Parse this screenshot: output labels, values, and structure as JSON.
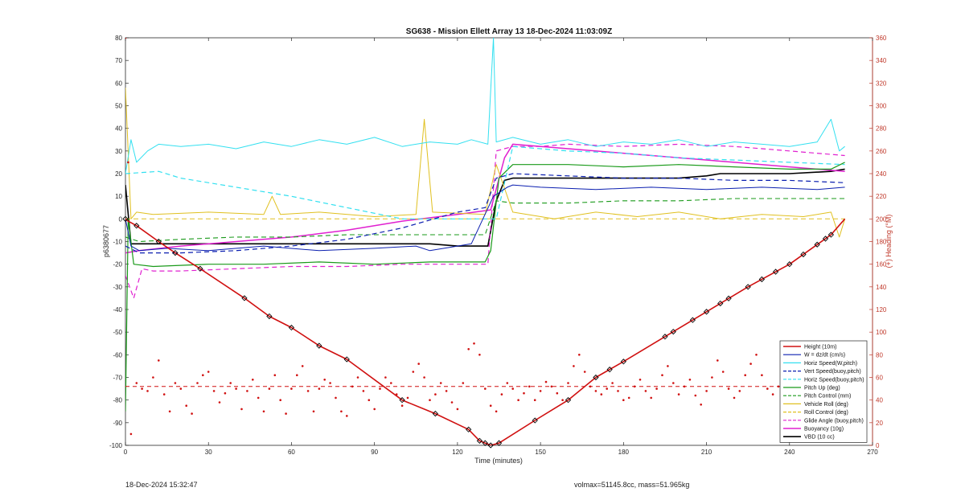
{
  "footer": {
    "left": "18-Dec-2024 15:32:47",
    "right": "volmax=51145.8cc, mass=51.965kg"
  },
  "colors": {
    "height": "#d01010",
    "w": "#0b1fb0",
    "horz_speed": "#33e0f0",
    "pitch": "#1a9a1a",
    "roll": "#e0c020",
    "glide": "#e020d0",
    "buoyancy": "#e020d0",
    "vbd": "#000000",
    "right_axis": "#c0392b"
  },
  "chart_data": {
    "type": "line",
    "title": "SG638 - Mission Ellett Array 13 18-Dec-2024 11:03:09Z",
    "xlabel": "Time (minutes)",
    "ylabel": "p6380677",
    "ylabel_right": "(+) Heading (°M)",
    "xlim": [
      0,
      270
    ],
    "ylim": [
      -100,
      80
    ],
    "ylim_right": [
      0,
      360
    ],
    "xticks": [
      0,
      30,
      60,
      90,
      120,
      150,
      180,
      210,
      240,
      270
    ],
    "yticks": [
      -100,
      -90,
      -80,
      -70,
      -60,
      -50,
      -40,
      -30,
      -20,
      -10,
      0,
      10,
      20,
      30,
      40,
      50,
      60,
      70,
      80
    ],
    "yticks_right": [
      0,
      20,
      40,
      60,
      80,
      100,
      120,
      140,
      160,
      180,
      200,
      220,
      240,
      260,
      280,
      300,
      320,
      340,
      360
    ],
    "grid": false,
    "legend_position": "bottom-right",
    "series": [
      {
        "name": "Height (10m)",
        "key": "height",
        "style": "solid",
        "width": 1.6,
        "x": [
          0,
          1,
          4,
          12,
          18,
          27,
          43,
          52,
          60,
          70,
          80,
          100,
          112,
          124,
          128,
          130,
          132,
          135,
          148,
          160,
          170,
          180,
          195,
          210,
          225,
          240,
          255,
          260
        ],
        "y": [
          0,
          -1,
          -3,
          -10,
          -15,
          -22,
          -35,
          -43,
          -48,
          -56,
          -62,
          -80,
          -86,
          -93,
          -98,
          -99,
          -100,
          -99,
          -89,
          -80,
          -70,
          -63,
          -52,
          -41,
          -30,
          -20,
          -7,
          0
        ]
      },
      {
        "name": "W = dz/dt (cm/s)",
        "key": "w",
        "style": "solid",
        "width": 1,
        "x": [
          0,
          2,
          5,
          15,
          30,
          50,
          70,
          90,
          105,
          110,
          120,
          125,
          133,
          138,
          140,
          150,
          170,
          190,
          210,
          230,
          250,
          260
        ],
        "y": [
          0,
          -12,
          -14,
          -13,
          -14,
          -12,
          -14,
          -13,
          -12,
          -14,
          -12,
          -11,
          10,
          14,
          15,
          14,
          13,
          14,
          13,
          14,
          13,
          14
        ]
      },
      {
        "name": "Horiz Speed(W,pitch)",
        "key": "horz_speed",
        "style": "solid",
        "width": 1,
        "x": [
          0,
          2,
          4,
          8,
          12,
          20,
          30,
          40,
          50,
          60,
          70,
          80,
          90,
          100,
          110,
          120,
          125,
          131,
          133,
          134,
          140,
          150,
          160,
          170,
          180,
          190,
          200,
          210,
          220,
          230,
          240,
          250,
          255,
          258,
          260
        ],
        "y": [
          20,
          35,
          25,
          30,
          33,
          32,
          33,
          31,
          34,
          32,
          35,
          33,
          36,
          32,
          34,
          33,
          35,
          33,
          80,
          34,
          36,
          33,
          35,
          32,
          34,
          33,
          35,
          32,
          34,
          33,
          32,
          34,
          44,
          30,
          32
        ]
      },
      {
        "name": "Vert Speed(buoy,pitch)",
        "key": "w",
        "style": "dash",
        "width": 1.2,
        "x": [
          0,
          5,
          20,
          40,
          60,
          80,
          100,
          120,
          130,
          134,
          140,
          160,
          180,
          200,
          220,
          240,
          260
        ],
        "y": [
          -12,
          -15,
          -15,
          -14,
          -12,
          -9,
          -4,
          3,
          5,
          18,
          20,
          19,
          18,
          18,
          17,
          17,
          16
        ]
      },
      {
        "name": "Horiz Speed(buoy,pitch)",
        "key": "horz_speed",
        "style": "dash",
        "width": 1.2,
        "x": [
          0,
          12,
          20,
          40,
          60,
          80,
          100,
          120,
          134,
          140,
          160,
          180,
          200,
          220,
          240,
          260
        ],
        "y": [
          20,
          21,
          18,
          14,
          10,
          5,
          0,
          0,
          0,
          32,
          30,
          29,
          27,
          26,
          25,
          24
        ]
      },
      {
        "name": "Pitch Up (deg)",
        "key": "pitch",
        "style": "solid",
        "width": 1.2,
        "x": [
          0,
          1,
          3,
          10,
          30,
          50,
          70,
          90,
          110,
          130,
          132,
          135,
          140,
          160,
          180,
          200,
          220,
          240,
          255,
          260
        ],
        "y": [
          -85,
          0,
          -20,
          -21,
          -20,
          -20,
          -19,
          -20,
          -19,
          -19,
          -14,
          18,
          24,
          24,
          23,
          24,
          23,
          22,
          22,
          25
        ]
      },
      {
        "name": "Pitch Control (mm)",
        "key": "pitch",
        "style": "dash",
        "width": 1.1,
        "x": [
          0,
          5,
          20,
          40,
          60,
          80,
          100,
          120,
          130,
          134,
          140,
          160,
          180,
          200,
          220,
          240,
          260
        ],
        "y": [
          -8,
          -10,
          -9,
          -8,
          -8,
          -7,
          -7,
          -7,
          -7,
          8,
          7,
          7,
          8,
          8,
          9,
          9,
          9
        ]
      },
      {
        "name": "Vehicle Roll (deg)",
        "key": "roll",
        "style": "solid",
        "width": 1,
        "x": [
          0,
          2,
          4,
          10,
          30,
          50,
          53,
          56,
          70,
          90,
          105,
          108,
          111,
          130,
          134,
          140,
          155,
          170,
          185,
          200,
          215,
          230,
          245,
          255,
          258,
          260
        ],
        "y": [
          58,
          0,
          3,
          2,
          3,
          2,
          10,
          2,
          3,
          1,
          2,
          44,
          3,
          2,
          24,
          3,
          0,
          3,
          1,
          3,
          0,
          2,
          1,
          3,
          -8,
          0
        ]
      },
      {
        "name": "Roll Control (deg)",
        "key": "roll",
        "style": "dash",
        "width": 1,
        "x": [
          0,
          5,
          20,
          40,
          60,
          80,
          100,
          120,
          131,
          134,
          140,
          160,
          180,
          200,
          220,
          240,
          260
        ],
        "y": [
          0,
          0,
          0,
          0,
          0,
          0,
          0,
          0,
          0,
          0,
          0,
          0,
          0,
          0,
          0,
          0,
          0
        ]
      },
      {
        "name": "Glide Angle (buoy,pitch)",
        "key": "glide",
        "style": "dash",
        "width": 1.2,
        "x": [
          0,
          3,
          6,
          10,
          20,
          40,
          60,
          80,
          100,
          120,
          131,
          134,
          140,
          150,
          160,
          180,
          200,
          220,
          240,
          260
        ],
        "y": [
          -25,
          -35,
          -22,
          -23,
          -23,
          -22,
          -21,
          -21,
          -20,
          -20,
          -20,
          30,
          32,
          32,
          33,
          32,
          33,
          32,
          30,
          28
        ]
      },
      {
        "name": "Buoyancy (10g)",
        "key": "buoyancy",
        "style": "solid",
        "width": 1.5,
        "x": [
          0,
          5,
          20,
          40,
          60,
          80,
          100,
          120,
          132,
          137,
          140,
          160,
          180,
          200,
          220,
          240,
          260
        ],
        "y": [
          -15,
          -14,
          -12,
          -10,
          -8,
          -5,
          -1,
          2,
          4,
          27,
          33,
          31,
          29,
          27,
          25,
          23,
          21
        ]
      },
      {
        "name": "VBD (10 cc)",
        "key": "vbd",
        "style": "solid",
        "width": 1.6,
        "x": [
          0,
          2,
          10,
          30,
          60,
          90,
          110,
          120,
          131,
          134,
          137,
          140,
          160,
          180,
          200,
          210,
          215,
          240,
          255,
          260
        ],
        "y": [
          15,
          -11,
          -11,
          -11,
          -11,
          -11,
          -11,
          -12,
          -12,
          8,
          17,
          18,
          18,
          18,
          18,
          19,
          20,
          20,
          21,
          22
        ]
      }
    ],
    "heading_series": {
      "name": "(+) Heading (°M)",
      "target": 52,
      "x": [
        0,
        1,
        2,
        4,
        6,
        8,
        10,
        12,
        14,
        16,
        18,
        20,
        22,
        24,
        26,
        28,
        30,
        32,
        34,
        36,
        38,
        40,
        42,
        44,
        46,
        48,
        50,
        52,
        54,
        56,
        58,
        60,
        62,
        64,
        66,
        68,
        70,
        72,
        74,
        76,
        78,
        80,
        82,
        84,
        86,
        88,
        90,
        92,
        94,
        96,
        98,
        100,
        102,
        104,
        106,
        108,
        110,
        112,
        114,
        116,
        118,
        120,
        122,
        124,
        126,
        128,
        130,
        132,
        134,
        136,
        138,
        140,
        142,
        144,
        146,
        148,
        150,
        152,
        154,
        156,
        158,
        160,
        162,
        164,
        166,
        168,
        170,
        172,
        174,
        176,
        178,
        180,
        182,
        184,
        186,
        188,
        190,
        192,
        194,
        196,
        198,
        200,
        202,
        204,
        206,
        208,
        210,
        212,
        214,
        216,
        218,
        220,
        222,
        224,
        226,
        228,
        230,
        232,
        234,
        236,
        238,
        240,
        242,
        244,
        246,
        248,
        250,
        252,
        254,
        256,
        258,
        260
      ],
      "y": [
        360,
        250,
        10,
        55,
        50,
        48,
        60,
        75,
        45,
        30,
        55,
        50,
        35,
        28,
        55,
        62,
        65,
        48,
        38,
        46,
        55,
        50,
        32,
        48,
        58,
        42,
        30,
        50,
        62,
        40,
        28,
        50,
        62,
        70,
        48,
        30,
        50,
        58,
        55,
        42,
        30,
        26,
        52,
        60,
        48,
        40,
        32,
        50,
        60,
        55,
        45,
        35,
        42,
        65,
        72,
        60,
        40,
        45,
        55,
        48,
        38,
        32,
        55,
        85,
        90,
        80,
        50,
        35,
        30,
        45,
        55,
        50,
        40,
        46,
        52,
        40,
        48,
        56,
        52,
        46,
        40,
        55,
        70,
        80,
        65,
        52,
        48,
        45,
        50,
        55,
        48,
        40,
        42,
        52,
        58,
        48,
        42,
        50,
        62,
        70,
        55,
        45,
        52,
        58,
        44,
        36,
        48,
        60,
        75,
        65,
        50,
        42,
        48,
        62,
        72,
        80,
        62,
        50,
        45,
        52,
        58,
        50,
        45,
        40,
        50,
        66,
        30,
        25,
        40,
        58,
        70,
        52
      ]
    },
    "depth_markers_x": [
      0,
      4,
      12,
      18,
      27,
      43,
      52,
      60,
      70,
      80,
      100,
      112,
      124,
      128,
      130,
      132,
      135,
      148,
      160,
      170,
      175,
      180,
      195,
      198,
      205,
      210,
      215,
      218,
      225,
      230,
      235,
      240,
      245,
      250,
      253,
      255
    ]
  }
}
